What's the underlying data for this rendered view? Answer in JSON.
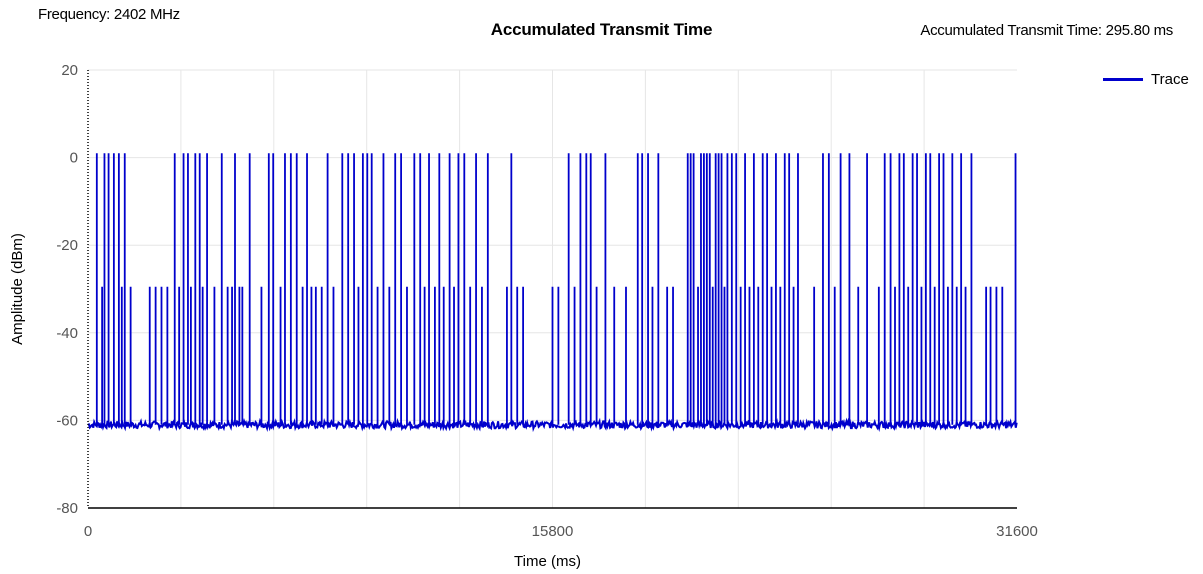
{
  "header": {
    "frequency": "Frequency: 2402 MHz",
    "title": "Accumulated Transmit Time",
    "accumulated": "Accumulated Transmit Time: 295.80 ms"
  },
  "chart_data": {
    "type": "line",
    "title": "Accumulated Transmit Time",
    "xlabel": "Time (ms)",
    "ylabel": "Amplitude (dBm)",
    "xlim": [
      0,
      31600
    ],
    "ylim": [
      -80,
      20
    ],
    "x_ticks": [
      "0",
      "15800",
      "31600"
    ],
    "y_ticks": [
      "20",
      "0",
      "-20",
      "-40",
      "-60",
      "-80"
    ],
    "grid": true,
    "legend_position": "top-right",
    "colors": {
      "trace": "#0000cc",
      "grid": "#e6e6e6",
      "axis": "#000000"
    },
    "series": [
      {
        "name": "Trace",
        "baseline_dbm": -61,
        "levels_dbm": [
          1,
          -29.5
        ],
        "pulses": [
          {
            "t": 300,
            "a": 1
          },
          {
            "t": 480,
            "a": -29.5
          },
          {
            "t": 560,
            "a": 1
          },
          {
            "t": 700,
            "a": 1
          },
          {
            "t": 880,
            "a": 1
          },
          {
            "t": 1050,
            "a": 1
          },
          {
            "t": 1150,
            "a": -29.5
          },
          {
            "t": 1250,
            "a": 1
          },
          {
            "t": 1450,
            "a": -29.5
          },
          {
            "t": 2100,
            "a": -29.5
          },
          {
            "t": 2300,
            "a": -29.5
          },
          {
            "t": 2500,
            "a": -29.5
          },
          {
            "t": 2700,
            "a": -29.5
          },
          {
            "t": 2950,
            "a": 1
          },
          {
            "t": 3100,
            "a": -29.5
          },
          {
            "t": 3250,
            "a": 1
          },
          {
            "t": 3400,
            "a": 1
          },
          {
            "t": 3500,
            "a": -29.5
          },
          {
            "t": 3650,
            "a": 1
          },
          {
            "t": 3800,
            "a": 1
          },
          {
            "t": 3900,
            "a": -29.5
          },
          {
            "t": 4050,
            "a": 1
          },
          {
            "t": 4300,
            "a": -29.5
          },
          {
            "t": 4550,
            "a": 1
          },
          {
            "t": 4750,
            "a": -29.5
          },
          {
            "t": 4900,
            "a": -29.5
          },
          {
            "t": 5000,
            "a": 1
          },
          {
            "t": 5150,
            "a": -29.5
          },
          {
            "t": 5250,
            "a": -29.5
          },
          {
            "t": 5500,
            "a": 1
          },
          {
            "t": 5900,
            "a": -29.5
          },
          {
            "t": 6150,
            "a": 1
          },
          {
            "t": 6300,
            "a": 1
          },
          {
            "t": 6550,
            "a": -29.5
          },
          {
            "t": 6700,
            "a": 1
          },
          {
            "t": 6900,
            "a": 1
          },
          {
            "t": 7100,
            "a": 1
          },
          {
            "t": 7300,
            "a": -29.5
          },
          {
            "t": 7450,
            "a": 1
          },
          {
            "t": 7600,
            "a": -29.5
          },
          {
            "t": 7750,
            "a": -29.5
          },
          {
            "t": 7950,
            "a": -29.5
          },
          {
            "t": 8150,
            "a": 1
          },
          {
            "t": 8350,
            "a": -29.5
          },
          {
            "t": 8650,
            "a": 1
          },
          {
            "t": 8850,
            "a": 1
          },
          {
            "t": 9050,
            "a": 1
          },
          {
            "t": 9200,
            "a": -29.5
          },
          {
            "t": 9350,
            "a": 1
          },
          {
            "t": 9500,
            "a": 1
          },
          {
            "t": 9650,
            "a": 1
          },
          {
            "t": 9850,
            "a": -29.5
          },
          {
            "t": 10050,
            "a": 1
          },
          {
            "t": 10250,
            "a": -29.5
          },
          {
            "t": 10450,
            "a": 1
          },
          {
            "t": 10650,
            "a": 1
          },
          {
            "t": 10850,
            "a": -29.5
          },
          {
            "t": 11100,
            "a": 1
          },
          {
            "t": 11300,
            "a": 1
          },
          {
            "t": 11450,
            "a": -29.5
          },
          {
            "t": 11600,
            "a": 1
          },
          {
            "t": 11800,
            "a": -29.5
          },
          {
            "t": 11950,
            "a": 1
          },
          {
            "t": 12100,
            "a": -29.5
          },
          {
            "t": 12300,
            "a": 1
          },
          {
            "t": 12450,
            "a": -29.5
          },
          {
            "t": 12600,
            "a": 1
          },
          {
            "t": 12800,
            "a": 1
          },
          {
            "t": 13000,
            "a": -29.5
          },
          {
            "t": 13200,
            "a": 1
          },
          {
            "t": 13400,
            "a": -29.5
          },
          {
            "t": 13600,
            "a": 1
          },
          {
            "t": 14250,
            "a": -29.5
          },
          {
            "t": 14400,
            "a": 1
          },
          {
            "t": 14600,
            "a": -29.5
          },
          {
            "t": 14800,
            "a": -29.5
          },
          {
            "t": 15800,
            "a": -29.5
          },
          {
            "t": 16000,
            "a": -29.5
          },
          {
            "t": 16350,
            "a": 1
          },
          {
            "t": 16550,
            "a": -29.5
          },
          {
            "t": 16750,
            "a": 1
          },
          {
            "t": 16950,
            "a": 1
          },
          {
            "t": 17100,
            "a": 1
          },
          {
            "t": 17300,
            "a": -29.5
          },
          {
            "t": 17600,
            "a": 1
          },
          {
            "t": 17900,
            "a": -29.5
          },
          {
            "t": 18300,
            "a": -29.5
          },
          {
            "t": 18700,
            "a": 1
          },
          {
            "t": 18850,
            "a": 1
          },
          {
            "t": 19050,
            "a": 1
          },
          {
            "t": 19200,
            "a": -29.5
          },
          {
            "t": 19400,
            "a": 1
          },
          {
            "t": 19700,
            "a": -29.5
          },
          {
            "t": 19900,
            "a": -29.5
          },
          {
            "t": 20400,
            "a": 1
          },
          {
            "t": 20500,
            "a": 1
          },
          {
            "t": 20600,
            "a": 1
          },
          {
            "t": 20750,
            "a": -29.5
          },
          {
            "t": 20850,
            "a": 1
          },
          {
            "t": 20950,
            "a": 1
          },
          {
            "t": 21050,
            "a": 1
          },
          {
            "t": 21150,
            "a": 1
          },
          {
            "t": 21250,
            "a": -29.5
          },
          {
            "t": 21350,
            "a": 1
          },
          {
            "t": 21450,
            "a": 1
          },
          {
            "t": 21550,
            "a": 1
          },
          {
            "t": 21650,
            "a": -29.5
          },
          {
            "t": 21750,
            "a": 1
          },
          {
            "t": 21900,
            "a": 1
          },
          {
            "t": 22050,
            "a": 1
          },
          {
            "t": 22200,
            "a": -29.5
          },
          {
            "t": 22350,
            "a": 1
          },
          {
            "t": 22500,
            "a": -29.5
          },
          {
            "t": 22650,
            "a": 1
          },
          {
            "t": 22800,
            "a": -29.5
          },
          {
            "t": 22950,
            "a": 1
          },
          {
            "t": 23100,
            "a": 1
          },
          {
            "t": 23250,
            "a": -29.5
          },
          {
            "t": 23400,
            "a": 1
          },
          {
            "t": 23550,
            "a": -29.5
          },
          {
            "t": 23700,
            "a": 1
          },
          {
            "t": 23850,
            "a": 1
          },
          {
            "t": 24000,
            "a": -29.5
          },
          {
            "t": 24150,
            "a": 1
          },
          {
            "t": 24700,
            "a": -29.5
          },
          {
            "t": 25000,
            "a": 1
          },
          {
            "t": 25200,
            "a": 1
          },
          {
            "t": 25400,
            "a": -29.5
          },
          {
            "t": 25600,
            "a": 1
          },
          {
            "t": 25900,
            "a": 1
          },
          {
            "t": 26200,
            "a": -29.5
          },
          {
            "t": 26500,
            "a": 1
          },
          {
            "t": 26900,
            "a": -29.5
          },
          {
            "t": 27100,
            "a": 1
          },
          {
            "t": 27300,
            "a": 1
          },
          {
            "t": 27450,
            "a": -29.5
          },
          {
            "t": 27600,
            "a": 1
          },
          {
            "t": 27750,
            "a": 1
          },
          {
            "t": 27900,
            "a": -29.5
          },
          {
            "t": 28050,
            "a": 1
          },
          {
            "t": 28200,
            "a": 1
          },
          {
            "t": 28350,
            "a": -29.5
          },
          {
            "t": 28500,
            "a": 1
          },
          {
            "t": 28650,
            "a": 1
          },
          {
            "t": 28800,
            "a": -29.5
          },
          {
            "t": 28950,
            "a": 1
          },
          {
            "t": 29100,
            "a": 1
          },
          {
            "t": 29250,
            "a": -29.5
          },
          {
            "t": 29400,
            "a": 1
          },
          {
            "t": 29550,
            "a": -29.5
          },
          {
            "t": 29700,
            "a": 1
          },
          {
            "t": 29850,
            "a": -29.5
          },
          {
            "t": 30050,
            "a": 1
          },
          {
            "t": 30550,
            "a": -29.5
          },
          {
            "t": 30700,
            "a": -29.5
          },
          {
            "t": 30900,
            "a": -29.5
          },
          {
            "t": 31100,
            "a": -29.5
          },
          {
            "t": 31550,
            "a": 1
          }
        ]
      }
    ]
  }
}
